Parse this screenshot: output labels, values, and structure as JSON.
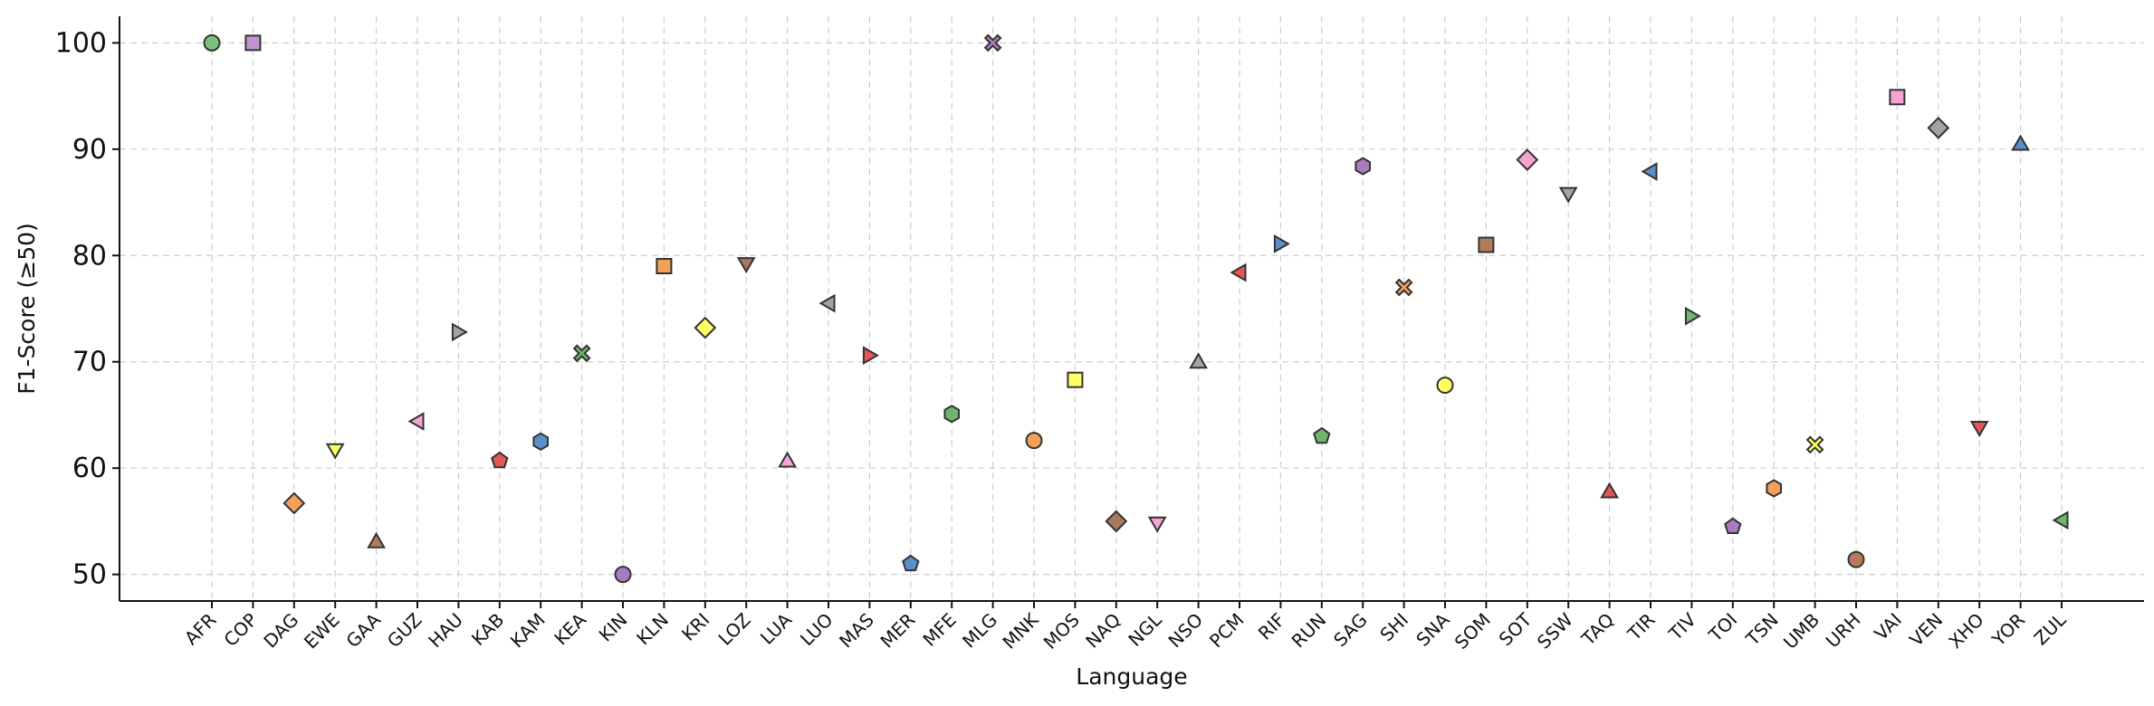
{
  "chart_data": {
    "type": "scatter",
    "title": "",
    "xlabel": "Language",
    "ylabel": "F1-Score (≥50)",
    "ylim": [
      47.5,
      102.5
    ],
    "yticks": [
      50,
      60,
      70,
      80,
      90,
      100
    ],
    "grid": true,
    "legend": "none",
    "categories": [
      "AFR",
      "COP",
      "DAG",
      "EWE",
      "GAA",
      "GUZ",
      "HAU",
      "KAB",
      "KAM",
      "KEA",
      "KIN",
      "KLN",
      "KRI",
      "LOZ",
      "LUA",
      "LUO",
      "MAS",
      "MER",
      "MFE",
      "MLG",
      "MNK",
      "MOS",
      "NAQ",
      "NGL",
      "NSO",
      "PCM",
      "RIF",
      "RUN",
      "SAG",
      "SHI",
      "SNA",
      "SOM",
      "SOT",
      "SSW",
      "TAQ",
      "TIR",
      "TIV",
      "TOI",
      "TSN",
      "UMB",
      "URH",
      "VAI",
      "VEN",
      "XHO",
      "YOR",
      "ZUL"
    ],
    "values": [
      100,
      100,
      56.7,
      61.7,
      53.1,
      64.4,
      72.8,
      60.7,
      62.5,
      70.8,
      50.0,
      79.0,
      73.2,
      79.2,
      60.7,
      75.5,
      70.6,
      51.0,
      65.1,
      100,
      62.6,
      68.3,
      55.0,
      54.8,
      70.0,
      78.4,
      81.1,
      63.0,
      88.4,
      77.0,
      67.8,
      81.0,
      89.0,
      85.8,
      57.8,
      87.9,
      74.3,
      54.5,
      58.1,
      62.2,
      51.4,
      94.9,
      92.0,
      63.8,
      90.5,
      55.1
    ],
    "markers": [
      "circle",
      "square",
      "diamond",
      "triangle-down",
      "triangle-up",
      "triangle-left",
      "triangle-right",
      "pentagon",
      "hexagon",
      "x",
      "circle",
      "square",
      "diamond",
      "triangle-down",
      "triangle-up",
      "triangle-left",
      "triangle-right",
      "pentagon",
      "hexagon",
      "x",
      "circle",
      "square",
      "diamond",
      "triangle-down",
      "triangle-up",
      "triangle-left",
      "triangle-right",
      "pentagon",
      "hexagon",
      "x",
      "circle",
      "square",
      "diamond",
      "triangle-down",
      "triangle-up",
      "triangle-left",
      "triangle-right",
      "pentagon",
      "hexagon",
      "x",
      "circle",
      "square",
      "diamond",
      "triangle-down",
      "triangle-up",
      "triangle-left"
    ],
    "colors": [
      "#7fbf7b",
      "#c294cf",
      "#f5a05a",
      "#ffff66",
      "#b07d5c",
      "#f5a3d3",
      "#a3a3a3",
      "#e45756",
      "#5a8fc8",
      "#6fb56a",
      "#a97cc0",
      "#f5a05a",
      "#ffff66",
      "#a87a5a",
      "#f5a3d3",
      "#a3a3a3",
      "#e45756",
      "#5a8fc8",
      "#6fb56a",
      "#a97cc0",
      "#f5a05a",
      "#ffff66",
      "#a87a5a",
      "#f5a3d3",
      "#a3a3a3",
      "#e45756",
      "#5a8fc8",
      "#6fb56a",
      "#a97cc0",
      "#f5a05a",
      "#ffff66",
      "#b07d5c",
      "#f5a3d3",
      "#a3a3a3",
      "#e45756",
      "#5a8fc8",
      "#6fb56a",
      "#a97cc0",
      "#f5a05a",
      "#ffff66",
      "#b07d5c",
      "#f5a3d3",
      "#a3a3a3",
      "#e45756",
      "#5a8fc8",
      "#6fb56a"
    ]
  }
}
